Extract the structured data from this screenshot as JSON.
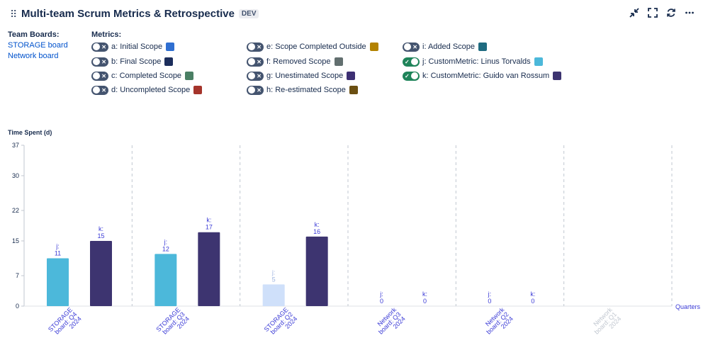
{
  "header": {
    "drag": "⠿",
    "title": "Multi-team Scrum Metrics & Retrospective",
    "badge": "DEV",
    "icons": [
      "collapse-icon",
      "fullscreen-icon",
      "refresh-icon",
      "more-icon"
    ]
  },
  "boards": {
    "label": "Team Boards:",
    "links": [
      "STORAGE board",
      "Network board"
    ]
  },
  "metrics": {
    "label": "Metrics:",
    "items": [
      {
        "label": "a: Initial Scope",
        "color": "#2f6fd1",
        "on": false
      },
      {
        "label": "b: Final Scope",
        "color": "#1c2e5c",
        "on": false
      },
      {
        "label": "c: Completed Scope",
        "color": "#4a7f64",
        "on": false
      },
      {
        "label": "d: Uncompleted Scope",
        "color": "#a5342b",
        "on": false
      },
      {
        "label": "e: Scope Completed Outside",
        "color": "#b38200",
        "on": false
      },
      {
        "label": "f: Removed Scope",
        "color": "#626f6f",
        "on": false
      },
      {
        "label": "g: Unestimated Scope",
        "color": "#3d2f73",
        "on": false
      },
      {
        "label": "h: Re-estimated Scope",
        "color": "#6b4f12",
        "on": false
      },
      {
        "label": "i: Added Scope",
        "color": "#1f6b80",
        "on": false
      },
      {
        "label": "j: CustomMetric: Linus Torvalds",
        "color": "#4cb8da",
        "on": true
      },
      {
        "label": "k: CustomMetric: Guido van Rossum",
        "color": "#3d3470",
        "on": true
      }
    ]
  },
  "chart_data": {
    "type": "bar",
    "ylabel": "Time Spent (d)",
    "xlabel": "Quarters",
    "ylim": [
      0,
      37
    ],
    "yticks": [
      0,
      7,
      15,
      22,
      30,
      37
    ],
    "grid": "vertical dashed separators",
    "categories": [
      "STORAGE board: Q4 2024",
      "STORAGE board: Q3 2024",
      "STORAGE board: Q2 2024",
      "Network board: Q3 2024",
      "Network board: Q2 2024",
      "Network board: Q1 2024"
    ],
    "category_faded": [
      false,
      false,
      false,
      false,
      false,
      true
    ],
    "series": [
      {
        "name": "j",
        "color": "#4cb8da",
        "faded_color": "#cfe0fa",
        "values": [
          11,
          12,
          5,
          0,
          0,
          null
        ],
        "faded": [
          false,
          false,
          true,
          false,
          false,
          true
        ]
      },
      {
        "name": "k",
        "color": "#3d3470",
        "faded_color": "#cfe0fa",
        "values": [
          15,
          17,
          16,
          0,
          0,
          null
        ],
        "faded": [
          false,
          false,
          false,
          false,
          false,
          true
        ]
      }
    ]
  }
}
